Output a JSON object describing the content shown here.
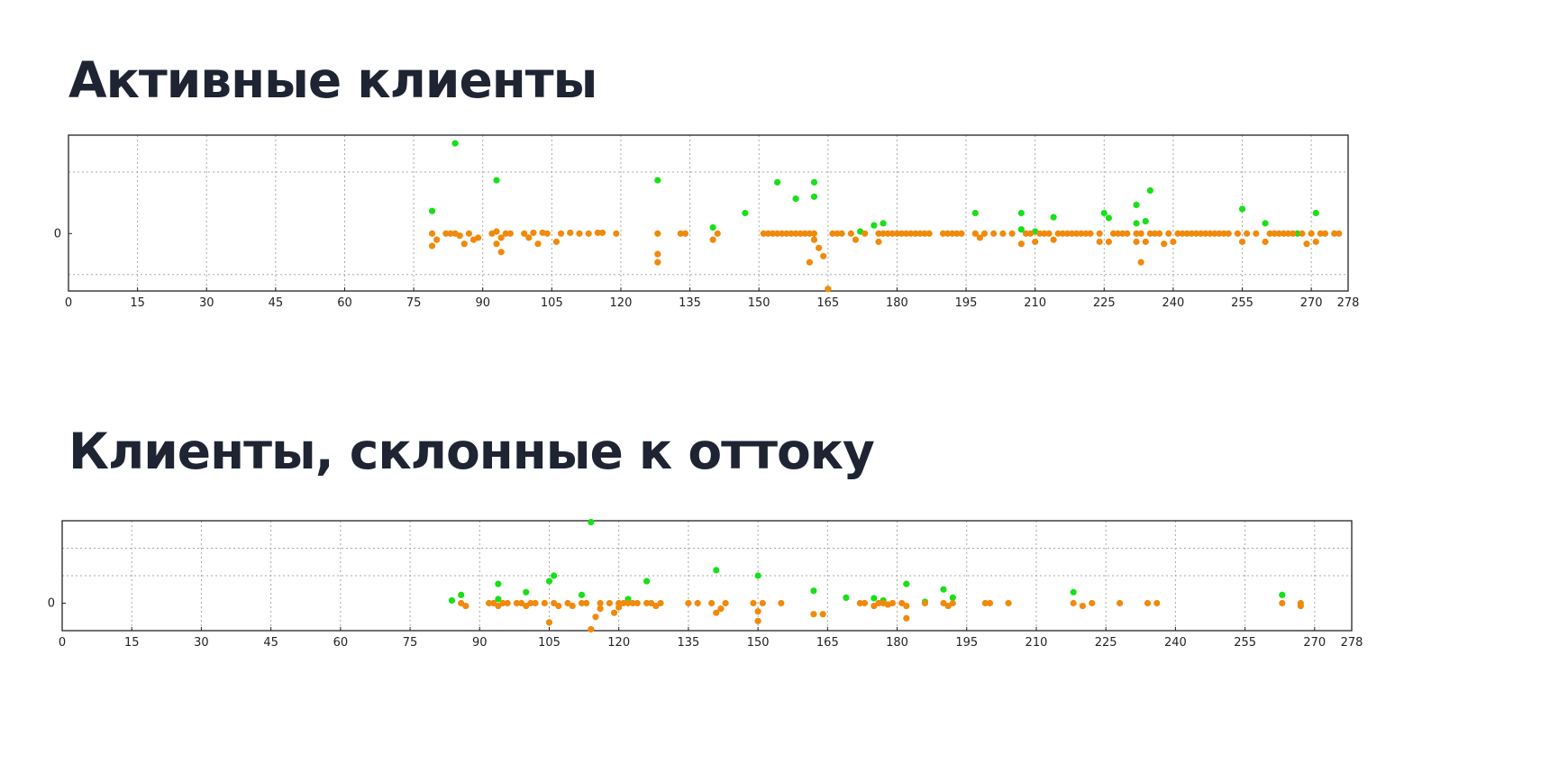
{
  "headings": {
    "active": "Активные клиенты",
    "churn": "Клиенты, склонные к оттоку"
  },
  "colors": {
    "orange": "#f08a0c",
    "green": "#18e018",
    "grid": "#a8a8a8",
    "heading": "#1f2433"
  },
  "chart_data": [
    {
      "type": "scatter",
      "title": "Активные клиенты",
      "xlabel": "",
      "ylabel": "",
      "xlim": [
        0,
        278
      ],
      "ylim": [
        -1.4,
        2.4
      ],
      "x_ticks": [
        "0",
        "15",
        "30",
        "45",
        "60",
        "75",
        "90",
        "105",
        "120",
        "135",
        "150",
        "165",
        "180",
        "195",
        "210",
        "225",
        "240",
        "255",
        "270",
        "278"
      ],
      "y_ticks": [
        "0"
      ],
      "grid": true,
      "series": [
        {
          "color": "#18e018",
          "points": [
            [
              79,
              0.55
            ],
            [
              84,
              2.2
            ],
            [
              93,
              1.3
            ],
            [
              128,
              1.3
            ],
            [
              140,
              0.15
            ],
            [
              147,
              0.5
            ],
            [
              154,
              1.25
            ],
            [
              158,
              0.85
            ],
            [
              162,
              1.25
            ],
            [
              162,
              0.9
            ],
            [
              172,
              0.05
            ],
            [
              175,
              0.2
            ],
            [
              177,
              0.25
            ],
            [
              197,
              0.5
            ],
            [
              207,
              0.5
            ],
            [
              207,
              0.1
            ],
            [
              210,
              0.05
            ],
            [
              214,
              0.4
            ],
            [
              225,
              0.5
            ],
            [
              226,
              0.38
            ],
            [
              232,
              0.7
            ],
            [
              232,
              0.25
            ],
            [
              234,
              0.3
            ],
            [
              235,
              1.05
            ],
            [
              255,
              0.6
            ],
            [
              260,
              0.25
            ],
            [
              267,
              0.0
            ],
            [
              271,
              0.5
            ]
          ]
        },
        {
          "color": "#f08a0c",
          "points": [
            [
              79,
              0
            ],
            [
              79,
              -0.3
            ],
            [
              80,
              -0.15
            ],
            [
              82,
              0
            ],
            [
              83,
              0
            ],
            [
              84,
              0
            ],
            [
              85,
              -0.05
            ],
            [
              86,
              -0.25
            ],
            [
              87,
              0
            ],
            [
              88,
              -0.15
            ],
            [
              89,
              -0.1
            ],
            [
              92,
              0
            ],
            [
              93,
              -0.25
            ],
            [
              93,
              0.05
            ],
            [
              94,
              -0.1
            ],
            [
              94,
              -0.45
            ],
            [
              95,
              0
            ],
            [
              96,
              0
            ],
            [
              99,
              0
            ],
            [
              100,
              -0.1
            ],
            [
              101,
              0.02
            ],
            [
              102,
              -0.25
            ],
            [
              103,
              0.02
            ],
            [
              104,
              0
            ],
            [
              106,
              -0.2
            ],
            [
              107,
              0
            ],
            [
              109,
              0.02
            ],
            [
              111,
              0
            ],
            [
              113,
              0
            ],
            [
              115,
              0.02
            ],
            [
              116,
              0.02
            ],
            [
              119,
              0
            ],
            [
              128,
              0
            ],
            [
              128,
              -0.5
            ],
            [
              128,
              -0.7
            ],
            [
              133,
              0
            ],
            [
              134,
              0
            ],
            [
              140,
              -0.15
            ],
            [
              141,
              0
            ],
            [
              151,
              0
            ],
            [
              152,
              0
            ],
            [
              153,
              0
            ],
            [
              154,
              0
            ],
            [
              155,
              0
            ],
            [
              156,
              0
            ],
            [
              157,
              0
            ],
            [
              158,
              0
            ],
            [
              159,
              0
            ],
            [
              160,
              0
            ],
            [
              161,
              0
            ],
            [
              162,
              0
            ],
            [
              162,
              -0.15
            ],
            [
              163,
              -0.35
            ],
            [
              161,
              -0.7
            ],
            [
              164,
              -0.55
            ],
            [
              165,
              -1.35
            ],
            [
              166,
              0
            ],
            [
              167,
              0
            ],
            [
              168,
              0
            ],
            [
              170,
              0
            ],
            [
              171,
              -0.15
            ],
            [
              173,
              0
            ],
            [
              176,
              0
            ],
            [
              176,
              -0.2
            ],
            [
              177,
              0
            ],
            [
              178,
              0
            ],
            [
              179,
              0
            ],
            [
              180,
              0
            ],
            [
              181,
              0
            ],
            [
              182,
              0
            ],
            [
              183,
              0
            ],
            [
              184,
              0
            ],
            [
              185,
              0
            ],
            [
              186,
              0
            ],
            [
              187,
              0
            ],
            [
              190,
              0
            ],
            [
              191,
              0
            ],
            [
              192,
              0
            ],
            [
              193,
              0
            ],
            [
              194,
              0
            ],
            [
              197,
              0
            ],
            [
              198,
              -0.1
            ],
            [
              199,
              0
            ],
            [
              201,
              0
            ],
            [
              203,
              0
            ],
            [
              205,
              0
            ],
            [
              207,
              -0.25
            ],
            [
              208,
              0
            ],
            [
              209,
              0
            ],
            [
              210,
              -0.2
            ],
            [
              211,
              0
            ],
            [
              212,
              0
            ],
            [
              213,
              0
            ],
            [
              214,
              -0.15
            ],
            [
              215,
              0
            ],
            [
              216,
              0
            ],
            [
              217,
              0
            ],
            [
              218,
              0
            ],
            [
              219,
              0
            ],
            [
              220,
              0
            ],
            [
              221,
              0
            ],
            [
              222,
              0
            ],
            [
              224,
              0
            ],
            [
              224,
              -0.2
            ],
            [
              226,
              -0.2
            ],
            [
              227,
              0
            ],
            [
              228,
              0
            ],
            [
              229,
              0
            ],
            [
              230,
              0
            ],
            [
              232,
              0
            ],
            [
              232,
              -0.2
            ],
            [
              233,
              0
            ],
            [
              233,
              -0.7
            ],
            [
              234,
              -0.2
            ],
            [
              235,
              0
            ],
            [
              236,
              0
            ],
            [
              237,
              0
            ],
            [
              238,
              -0.25
            ],
            [
              239,
              0
            ],
            [
              240,
              -0.2
            ],
            [
              241,
              0
            ],
            [
              242,
              0
            ],
            [
              243,
              0
            ],
            [
              244,
              0
            ],
            [
              245,
              0
            ],
            [
              246,
              0
            ],
            [
              247,
              0
            ],
            [
              248,
              0
            ],
            [
              249,
              0
            ],
            [
              250,
              0
            ],
            [
              251,
              0
            ],
            [
              252,
              0
            ],
            [
              254,
              0
            ],
            [
              255,
              -0.2
            ],
            [
              256,
              0
            ],
            [
              258,
              0
            ],
            [
              260,
              -0.2
            ],
            [
              261,
              0
            ],
            [
              262,
              0
            ],
            [
              263,
              0
            ],
            [
              264,
              0
            ],
            [
              265,
              0
            ],
            [
              266,
              0
            ],
            [
              268,
              0
            ],
            [
              269,
              -0.25
            ],
            [
              270,
              0
            ],
            [
              271,
              -0.2
            ],
            [
              272,
              0
            ],
            [
              273,
              0
            ],
            [
              275,
              0
            ],
            [
              276,
              0
            ]
          ]
        }
      ]
    },
    {
      "type": "scatter",
      "title": "Клиенты, склонные к оттоку",
      "xlabel": "",
      "ylabel": "",
      "xlim": [
        0,
        278
      ],
      "ylim": [
        -1.0,
        3.0
      ],
      "x_ticks": [
        "0",
        "15",
        "30",
        "45",
        "60",
        "75",
        "90",
        "105",
        "120",
        "135",
        "150",
        "165",
        "180",
        "195",
        "210",
        "225",
        "240",
        "255",
        "270",
        "278"
      ],
      "y_ticks": [
        "0"
      ],
      "grid": true,
      "series": [
        {
          "color": "#18e018",
          "points": [
            [
              84,
              0.1
            ],
            [
              86,
              0.3
            ],
            [
              94,
              0.7
            ],
            [
              94,
              0.15
            ],
            [
              100,
              0.4
            ],
            [
              105,
              0.8
            ],
            [
              106,
              1.0
            ],
            [
              112,
              0.3
            ],
            [
              114,
              2.95
            ],
            [
              122,
              0.15
            ],
            [
              126,
              0.8
            ],
            [
              141,
              1.2
            ],
            [
              150,
              1.0
            ],
            [
              162,
              0.45
            ],
            [
              169,
              0.2
            ],
            [
              175,
              0.18
            ],
            [
              177,
              0.1
            ],
            [
              182,
              0.7
            ],
            [
              186,
              0.05
            ],
            [
              190,
              0.5
            ],
            [
              192,
              0.2
            ],
            [
              218,
              0.4
            ],
            [
              263,
              0.3
            ]
          ]
        },
        {
          "color": "#f08a0c",
          "points": [
            [
              86,
              0
            ],
            [
              87,
              -0.1
            ],
            [
              92,
              0
            ],
            [
              93,
              0
            ],
            [
              94,
              -0.1
            ],
            [
              95,
              0
            ],
            [
              96,
              0
            ],
            [
              98,
              0
            ],
            [
              99,
              0
            ],
            [
              100,
              -0.1
            ],
            [
              101,
              0
            ],
            [
              102,
              0
            ],
            [
              104,
              0
            ],
            [
              105,
              -0.7
            ],
            [
              106,
              0
            ],
            [
              107,
              -0.1
            ],
            [
              109,
              0
            ],
            [
              110,
              -0.1
            ],
            [
              112,
              0
            ],
            [
              113,
              0
            ],
            [
              114,
              -0.95
            ],
            [
              115,
              -0.5
            ],
            [
              116,
              0
            ],
            [
              116,
              -0.2
            ],
            [
              118,
              0
            ],
            [
              119,
              -0.35
            ],
            [
              120,
              0
            ],
            [
              120,
              -0.15
            ],
            [
              121,
              0
            ],
            [
              122,
              0
            ],
            [
              123,
              0
            ],
            [
              124,
              0
            ],
            [
              126,
              0
            ],
            [
              127,
              0
            ],
            [
              128,
              -0.1
            ],
            [
              129,
              0
            ],
            [
              135,
              0
            ],
            [
              137,
              0
            ],
            [
              140,
              0
            ],
            [
              141,
              -0.35
            ],
            [
              142,
              -0.2
            ],
            [
              143,
              0
            ],
            [
              149,
              0
            ],
            [
              150,
              -0.3
            ],
            [
              150,
              -0.65
            ],
            [
              151,
              0
            ],
            [
              155,
              0
            ],
            [
              162,
              -0.4
            ],
            [
              164,
              -0.4
            ],
            [
              172,
              0
            ],
            [
              173,
              0
            ],
            [
              175,
              -0.1
            ],
            [
              176,
              0
            ],
            [
              177,
              0
            ],
            [
              178,
              -0.05
            ],
            [
              179,
              0
            ],
            [
              181,
              0
            ],
            [
              182,
              -0.1
            ],
            [
              182,
              -0.55
            ],
            [
              186,
              0
            ],
            [
              190,
              0
            ],
            [
              191,
              -0.1
            ],
            [
              192,
              0
            ],
            [
              199,
              0
            ],
            [
              200,
              0
            ],
            [
              204,
              0
            ],
            [
              218,
              0
            ],
            [
              220,
              -0.1
            ],
            [
              222,
              0
            ],
            [
              228,
              0
            ],
            [
              234,
              0
            ],
            [
              236,
              0
            ],
            [
              263,
              0
            ],
            [
              267,
              0
            ],
            [
              267,
              -0.1
            ]
          ]
        }
      ]
    }
  ]
}
